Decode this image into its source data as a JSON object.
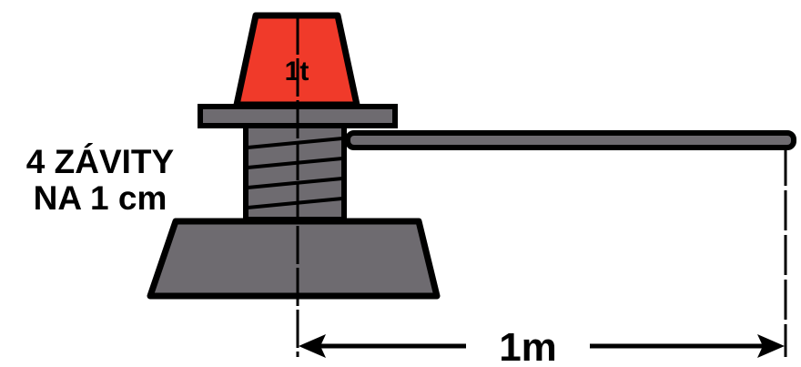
{
  "diagram": {
    "weight_label": "1t",
    "thread_label_line1": "4 ZÁVITY",
    "thread_label_line2": "NA 1 cm",
    "distance_label": "1m",
    "colors": {
      "weight_fill": "#f03a2a",
      "metal_fill": "#6e6b70",
      "outline": "#000000",
      "background": "#ffffff"
    }
  }
}
